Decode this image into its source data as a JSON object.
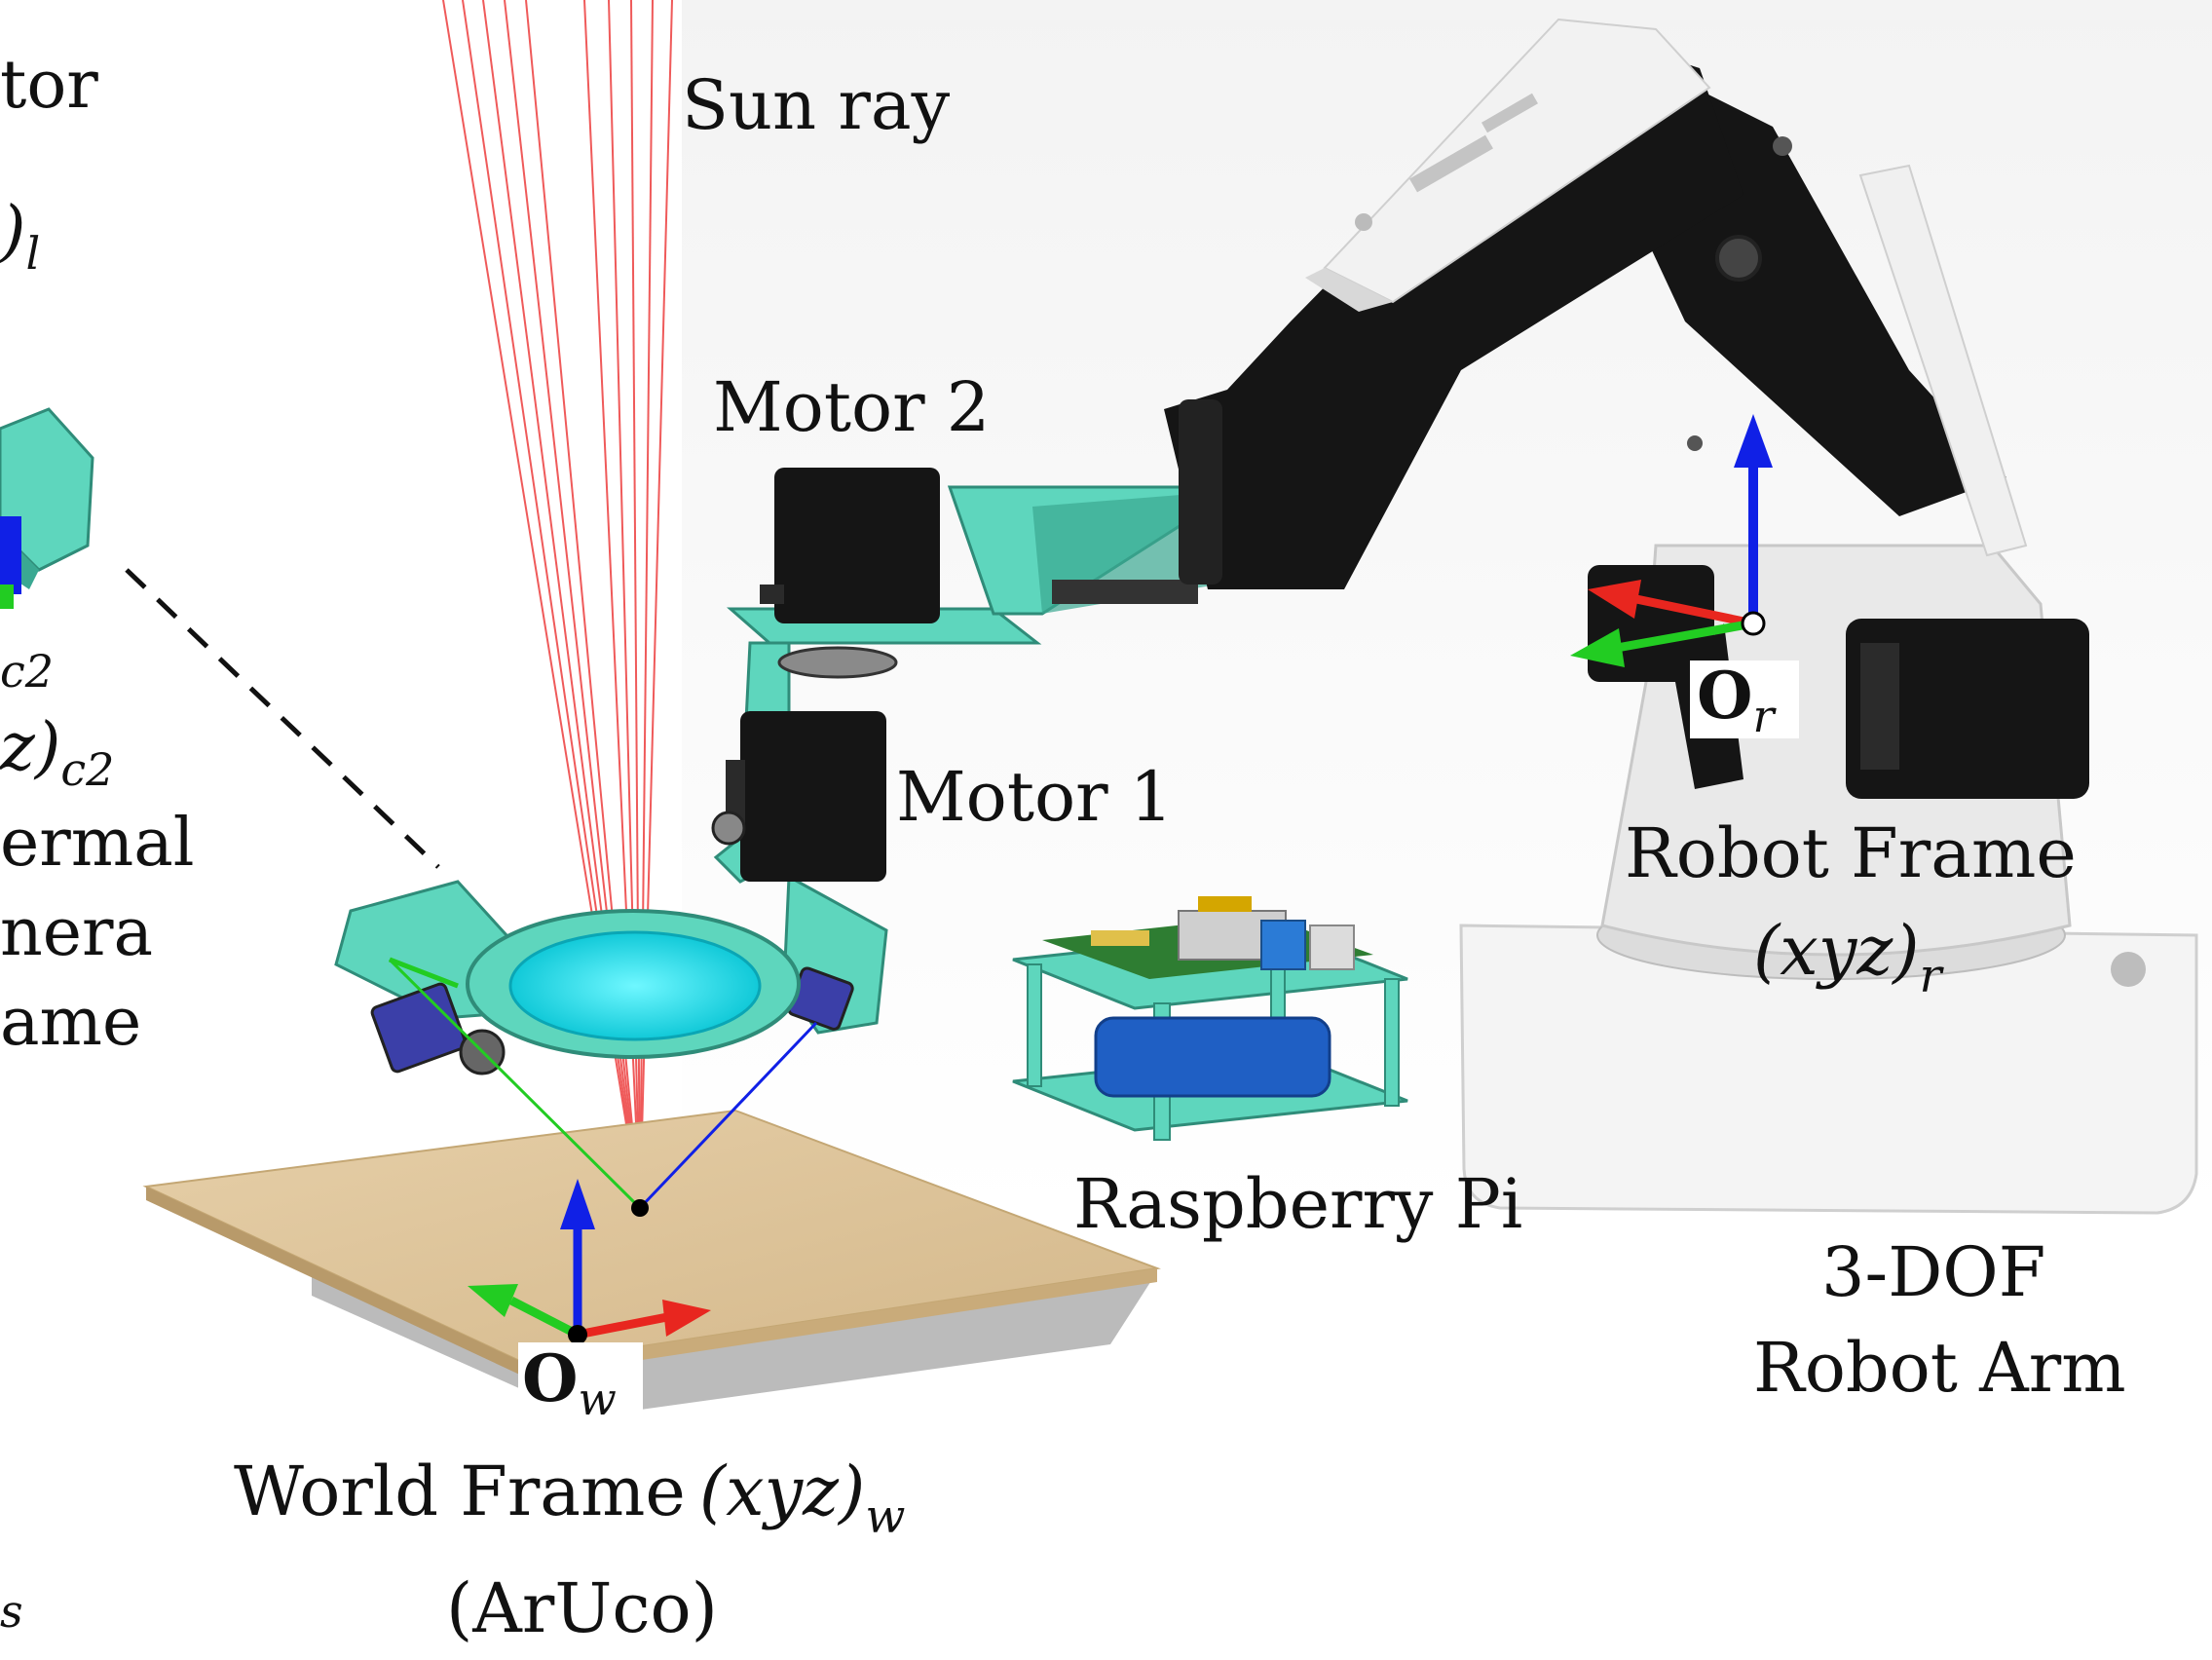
{
  "labels": {
    "left_cut_1": "tor",
    "left_cut_2": ")",
    "left_cut_2_sub": "l",
    "left_cut_3": "c2",
    "left_cut_4": "z)",
    "left_cut_4_sub": "c2",
    "left_cut_5": "ermal",
    "left_cut_6": "nera",
    "left_cut_7": "ame",
    "left_cut_8": "s",
    "sun_ray": "Sun ray",
    "motor2": "Motor 2",
    "motor1": "Motor 1",
    "raspberry": "Raspberry Pi",
    "robot_frame_1": "Robot Frame",
    "robot_frame_2": "(xyz)",
    "robot_frame_2_sub": "r",
    "arm_1": "3-DOF",
    "arm_2": "Robot Arm",
    "world_1": "World Frame",
    "world_1b": "(xyz)",
    "world_1b_sub": "w",
    "world_2": "(ArUco)",
    "origin_r": "O",
    "origin_r_sub": "r",
    "origin_w": "O",
    "origin_w_sub": "w"
  },
  "colors": {
    "teal": "#5ed6bd",
    "teal_dark": "#3aa892",
    "black_part": "#151515",
    "arm_white": "#eeeeee",
    "ray": "#ef5a5a",
    "axis_x": "#e8261f",
    "axis_y": "#22cc22",
    "axis_z": "#1020e6",
    "wood": "#ddc39a",
    "lens": "#22e6f0"
  }
}
